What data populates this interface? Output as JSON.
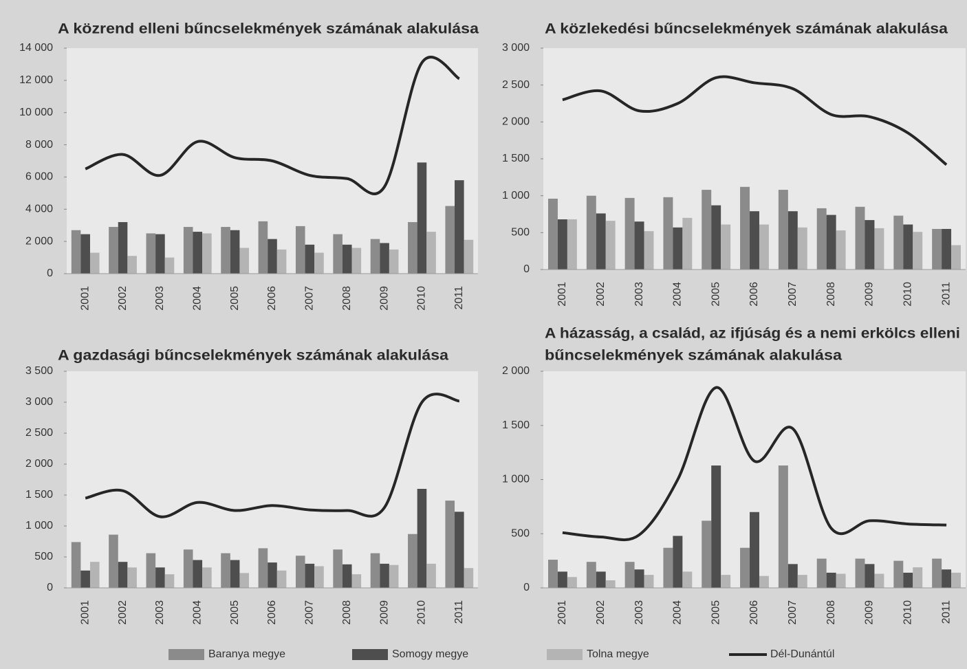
{
  "chart_data": [
    {
      "type": "bar-line",
      "title": "A közrend elleni bűncselekmények számának alakulása",
      "categories": [
        "2001",
        "2002",
        "2003",
        "2004",
        "2005",
        "2006",
        "2007",
        "2008",
        "2009",
        "2010",
        "2011"
      ],
      "ylim": [
        0,
        14000
      ],
      "yticks": [
        0,
        {
          "value": 2000,
          "label": "2 000"
        },
        {
          "value": 4000,
          "label": "4 000"
        },
        {
          "value": 6000,
          "label": "6 000"
        },
        {
          "value": 8000,
          "label": "8 000"
        },
        {
          "value": 10000,
          "label": "10 000"
        },
        {
          "value": 12000,
          "label": "12 000"
        },
        {
          "value": 14000,
          "label": "14 000"
        }
      ],
      "series": [
        {
          "values": [
            2700,
            2900,
            2500,
            2900,
            2900,
            3250,
            2950,
            2450,
            2150,
            3200,
            4200
          ]
        },
        {
          "values": [
            2450,
            3200,
            2450,
            2600,
            2700,
            2150,
            1800,
            1800,
            1900,
            6900,
            5800
          ]
        },
        {
          "values": [
            1300,
            1100,
            1000,
            2500,
            1600,
            1500,
            1300,
            1600,
            1500,
            2600,
            2100
          ]
        },
        {
          "values": [
            6500,
            7400,
            6100,
            8200,
            7200,
            7000,
            6100,
            5900,
            5400,
            13100,
            12100
          ]
        }
      ]
    },
    {
      "type": "bar-line",
      "title": "A közlekedési bűncselekmények számának alakulása",
      "categories": [
        "2001",
        "2002",
        "2003",
        "2004",
        "2005",
        "2006",
        "2007",
        "2008",
        "2009",
        "2010",
        "2011"
      ],
      "ylim": [
        0,
        3000
      ],
      "yticks": [
        0,
        500,
        {
          "value": 1000,
          "label": "1 000"
        },
        {
          "value": 1500,
          "label": "1 500"
        },
        {
          "value": 2000,
          "label": "2 000"
        },
        {
          "value": 2500,
          "label": "2 500"
        },
        {
          "value": 3000,
          "label": "3 000"
        }
      ],
      "series": [
        {
          "values": [
            960,
            1000,
            970,
            980,
            1080,
            1120,
            1080,
            830,
            850,
            730,
            550
          ]
        },
        {
          "values": [
            680,
            760,
            650,
            570,
            870,
            790,
            790,
            740,
            670,
            610,
            550
          ]
        },
        {
          "values": [
            680,
            660,
            520,
            700,
            610,
            610,
            570,
            530,
            560,
            510,
            330
          ]
        },
        {
          "values": [
            2300,
            2420,
            2150,
            2250,
            2600,
            2530,
            2450,
            2100,
            2070,
            1850,
            1420
          ]
        }
      ]
    },
    {
      "type": "bar-line",
      "title": "A gazdasági bűncselekmények számának alakulása",
      "categories": [
        "2001",
        "2002",
        "2003",
        "2004",
        "2005",
        "2006",
        "2007",
        "2008",
        "2009",
        "2010",
        "2011"
      ],
      "ylim": [
        0,
        3500
      ],
      "yticks": [
        0,
        500,
        {
          "value": 1000,
          "label": "1 000"
        },
        {
          "value": 1500,
          "label": "1 500"
        },
        {
          "value": 2000,
          "label": "2 000"
        },
        {
          "value": 2500,
          "label": "2 500"
        },
        {
          "value": 3000,
          "label": "3 000"
        },
        {
          "value": 3500,
          "label": "3 500"
        }
      ],
      "series": [
        {
          "values": [
            740,
            860,
            560,
            620,
            560,
            640,
            520,
            620,
            560,
            870,
            1410
          ]
        },
        {
          "values": [
            280,
            420,
            330,
            450,
            450,
            410,
            390,
            380,
            390,
            1600,
            1230
          ]
        },
        {
          "values": [
            420,
            330,
            220,
            330,
            240,
            280,
            350,
            220,
            370,
            390,
            320
          ]
        },
        {
          "values": [
            1450,
            1570,
            1150,
            1380,
            1250,
            1330,
            1260,
            1250,
            1300,
            3000,
            3020
          ]
        }
      ]
    },
    {
      "type": "bar-line",
      "title": [
        "A házasság, a család, az ifjúság és a nemi erkölcs elleni",
        "bűncselekmények számának alakulása"
      ],
      "categories": [
        "2001",
        "2002",
        "2003",
        "2004",
        "2005",
        "2006",
        "2007",
        "2008",
        "2009",
        "2010",
        "2011"
      ],
      "ylim": [
        0,
        2000
      ],
      "yticks": [
        0,
        500,
        {
          "value": 1000,
          "label": "1 000"
        },
        {
          "value": 1500,
          "label": "1 500"
        },
        {
          "value": 2000,
          "label": "2 000"
        }
      ],
      "series": [
        {
          "values": [
            260,
            240,
            240,
            370,
            620,
            370,
            1130,
            270,
            270,
            250,
            270
          ]
        },
        {
          "values": [
            150,
            150,
            170,
            480,
            1130,
            700,
            220,
            140,
            220,
            140,
            170
          ]
        },
        {
          "values": [
            100,
            70,
            120,
            150,
            120,
            110,
            120,
            130,
            130,
            190,
            140
          ]
        },
        {
          "values": [
            510,
            470,
            490,
            1000,
            1850,
            1170,
            1470,
            550,
            620,
            590,
            580
          ]
        }
      ]
    }
  ],
  "legend": [
    {
      "name": "Baranya megye",
      "color": "#8b8b8b"
    },
    {
      "name": "Somogy megye",
      "color": "#4e4e4e"
    },
    {
      "name": "Tolna megye",
      "color": "#b4b4b4"
    },
    {
      "name": "Dél-Dunántúl",
      "color": "#262626"
    }
  ]
}
